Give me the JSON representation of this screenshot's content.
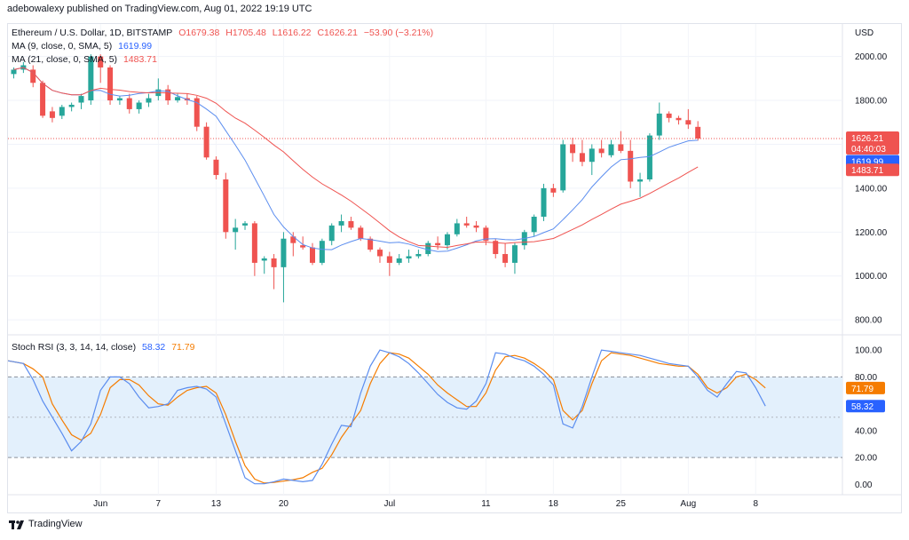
{
  "publisher": "adebowalexy published on TradingView.com, Aug 01, 2022 19:19 UTC",
  "legend": {
    "symbol": "Ethereum / U.S. Dollar, 1D, BITSTAMP",
    "open": "O1679.38",
    "high": "H1705.48",
    "low": "L1616.22",
    "close": "C1626.21",
    "change": "−53.90 (−3.21%)",
    "ma9_label": "MA (9, close, 0, SMA, 5)",
    "ma9_value": "1619.99",
    "ma21_label": "MA (21, close, 0, SMA, 5)",
    "ma21_value": "1483.71",
    "rsi_label": "Stoch RSI (3, 3, 14, 14, close)",
    "rsi_k": "58.32",
    "rsi_d": "71.79"
  },
  "branding": "TradingView",
  "colors": {
    "up": "#26a69a",
    "down": "#ef5350",
    "ma9": "#5b8def",
    "ma21": "#ef5350",
    "stoch_k": "#5b8def",
    "stoch_d": "#f57c00",
    "band_fill": "#e3f0fc",
    "price_line": "#ef5350"
  },
  "chart_data": [
    {
      "type": "candlestick",
      "title": "Ethereum / U.S. Dollar, 1D, BITSTAMP",
      "currency": "USD",
      "ylim": [
        740,
        2140
      ],
      "yticks": [
        800,
        1000,
        1200,
        1400,
        1600,
        1800,
        2000
      ],
      "ytick_labels": [
        "800.00",
        "1000.00",
        "1200.00",
        "1400.00",
        "1600.00",
        "1800.00",
        "2000.00"
      ],
      "xtick_labels": [
        "Jun",
        "7",
        "13",
        "20",
        "Jul",
        "11",
        "18",
        "25",
        "Aug",
        "8"
      ],
      "xtick_day_index": [
        0,
        6,
        12,
        19,
        30,
        40,
        47,
        54,
        61,
        68
      ],
      "first_day_index": -9,
      "day_span": [
        -9.6,
        77
      ],
      "last_price": "1626.21",
      "countdown": "04:40:03",
      "candles": [
        [
          1920,
          1950,
          1900,
          1940
        ],
        [
          1940,
          1975,
          1925,
          1960
        ],
        [
          1940,
          1960,
          1860,
          1880
        ],
        [
          1880,
          1890,
          1720,
          1730
        ],
        [
          1750,
          1770,
          1700,
          1720
        ],
        [
          1730,
          1780,
          1715,
          1770
        ],
        [
          1770,
          1790,
          1750,
          1780
        ],
        [
          1790,
          1830,
          1760,
          1820
        ],
        [
          1800,
          2010,
          1780,
          2000
        ],
        [
          2000,
          2010,
          1880,
          1950
        ],
        [
          1950,
          1960,
          1780,
          1800
        ],
        [
          1800,
          1820,
          1780,
          1810
        ],
        [
          1810,
          1830,
          1740,
          1760
        ],
        [
          1760,
          1800,
          1740,
          1790
        ],
        [
          1790,
          1830,
          1770,
          1810
        ],
        [
          1820,
          1900,
          1800,
          1850
        ],
        [
          1850,
          1870,
          1780,
          1800
        ],
        [
          1800,
          1830,
          1790,
          1815
        ],
        [
          1810,
          1830,
          1780,
          1800
        ],
        [
          1810,
          1820,
          1660,
          1680
        ],
        [
          1680,
          1700,
          1530,
          1540
        ],
        [
          1530,
          1545,
          1440,
          1460
        ],
        [
          1440,
          1470,
          1170,
          1200
        ],
        [
          1200,
          1260,
          1120,
          1220
        ],
        [
          1230,
          1250,
          1210,
          1240
        ],
        [
          1240,
          1250,
          1000,
          1060
        ],
        [
          1070,
          1090,
          1010,
          1080
        ],
        [
          1080,
          1100,
          940,
          1040
        ],
        [
          1040,
          1200,
          880,
          1170
        ],
        [
          1180,
          1200,
          1090,
          1150
        ],
        [
          1140,
          1180,
          1120,
          1130
        ],
        [
          1130,
          1150,
          1050,
          1060
        ],
        [
          1060,
          1170,
          1050,
          1160
        ],
        [
          1160,
          1240,
          1140,
          1230
        ],
        [
          1230,
          1280,
          1200,
          1250
        ],
        [
          1250,
          1270,
          1210,
          1220
        ],
        [
          1220,
          1230,
          1160,
          1170
        ],
        [
          1170,
          1180,
          1110,
          1120
        ],
        [
          1120,
          1130,
          1060,
          1090
        ],
        [
          1090,
          1110,
          1000,
          1060
        ],
        [
          1060,
          1100,
          1050,
          1080
        ],
        [
          1080,
          1120,
          1060,
          1090
        ],
        [
          1090,
          1120,
          1080,
          1100
        ],
        [
          1100,
          1160,
          1090,
          1150
        ],
        [
          1150,
          1180,
          1120,
          1140
        ],
        [
          1140,
          1200,
          1120,
          1190
        ],
        [
          1190,
          1260,
          1180,
          1240
        ],
        [
          1240,
          1270,
          1220,
          1230
        ],
        [
          1230,
          1250,
          1200,
          1220
        ],
        [
          1220,
          1230,
          1140,
          1160
        ],
        [
          1160,
          1170,
          1080,
          1100
        ],
        [
          1100,
          1150,
          1040,
          1060
        ],
        [
          1060,
          1150,
          1010,
          1140
        ],
        [
          1140,
          1210,
          1120,
          1200
        ],
        [
          1200,
          1280,
          1180,
          1270
        ],
        [
          1270,
          1420,
          1250,
          1400
        ],
        [
          1400,
          1420,
          1360,
          1380
        ],
        [
          1390,
          1620,
          1380,
          1600
        ],
        [
          1600,
          1630,
          1520,
          1560
        ],
        [
          1560,
          1620,
          1500,
          1520
        ],
        [
          1520,
          1600,
          1460,
          1580
        ],
        [
          1580,
          1620,
          1540,
          1560
        ],
        [
          1550,
          1620,
          1540,
          1600
        ],
        [
          1600,
          1660,
          1560,
          1570
        ],
        [
          1570,
          1620,
          1400,
          1430
        ],
        [
          1430,
          1470,
          1360,
          1440
        ],
        [
          1440,
          1650,
          1430,
          1640
        ],
        [
          1640,
          1790,
          1620,
          1740
        ],
        [
          1740,
          1750,
          1700,
          1720
        ],
        [
          1720,
          1730,
          1690,
          1710
        ],
        [
          1710,
          1760,
          1670,
          1690
        ],
        [
          1679.38,
          1705.48,
          1616.22,
          1626.21
        ]
      ],
      "series": [
        {
          "name": "MA (9, close, 0, SMA, 5)",
          "last": 1619.99
        },
        {
          "name": "MA (21, close, 0, SMA, 5)",
          "last": 1483.71
        }
      ]
    },
    {
      "type": "line",
      "title": "Stoch RSI (3, 3, 14, 14, close)",
      "ylim": [
        -5,
        110
      ],
      "yticks": [
        0,
        20,
        40,
        60,
        80,
        100
      ],
      "ytick_labels": [
        "0.00",
        "20.00",
        "40.00",
        "60.00",
        "80.00",
        "100.00"
      ],
      "band": [
        20,
        80
      ],
      "midline": 50,
      "series": [
        {
          "name": "K",
          "last": 58.32,
          "points": [
            [
              -9.6,
              92
            ],
            [
              -8,
              90
            ],
            [
              -7,
              78
            ],
            [
              -6,
              62
            ],
            [
              -4,
              38
            ],
            [
              -3,
              25
            ],
            [
              -2,
              32
            ],
            [
              -1,
              45
            ],
            [
              0,
              70
            ],
            [
              1,
              80
            ],
            [
              2,
              80
            ],
            [
              3,
              75
            ],
            [
              4,
              65
            ],
            [
              5,
              57
            ],
            [
              6,
              58
            ],
            [
              7,
              60
            ],
            [
              8,
              70
            ],
            [
              9,
              72
            ],
            [
              10,
              73
            ],
            [
              11,
              71
            ],
            [
              12,
              65
            ],
            [
              13,
              45
            ],
            [
              14,
              25
            ],
            [
              15,
              5
            ],
            [
              16,
              0.5
            ],
            [
              17,
              0.5
            ],
            [
              18,
              2
            ],
            [
              19,
              4
            ],
            [
              20,
              3
            ],
            [
              21,
              2
            ],
            [
              22,
              3
            ],
            [
              23,
              15
            ],
            [
              24,
              30
            ],
            [
              25,
              44
            ],
            [
              26,
              43
            ],
            [
              27,
              68
            ],
            [
              28,
              88
            ],
            [
              29,
              100
            ],
            [
              30,
              98
            ],
            [
              31,
              95
            ],
            [
              32,
              90
            ],
            [
              33,
              83
            ],
            [
              34,
              75
            ],
            [
              35,
              67
            ],
            [
              36,
              61
            ],
            [
              37,
              57
            ],
            [
              38,
              56
            ],
            [
              39,
              62
            ],
            [
              40,
              75
            ],
            [
              41,
              98
            ],
            [
              42,
              97
            ],
            [
              43,
              94
            ],
            [
              44,
              92
            ],
            [
              45,
              88
            ],
            [
              46,
              82
            ],
            [
              47,
              74
            ],
            [
              48,
              45
            ],
            [
              49,
              42
            ],
            [
              50,
              58
            ],
            [
              51,
              80
            ],
            [
              52,
              100
            ],
            [
              53,
              99
            ],
            [
              54,
              98
            ],
            [
              55,
              97
            ],
            [
              56,
              96
            ],
            [
              57,
              94
            ],
            [
              58,
              92
            ],
            [
              59,
              90
            ],
            [
              60,
              89
            ],
            [
              61,
              88
            ],
            [
              62,
              80
            ],
            [
              63,
              70
            ],
            [
              64,
              65
            ],
            [
              65,
              75
            ],
            [
              66,
              84
            ],
            [
              67,
              83
            ],
            [
              68,
              72
            ],
            [
              69,
              58.32
            ]
          ]
        },
        {
          "name": "D",
          "last": 71.79,
          "points": [
            [
              -9.6,
              92
            ],
            [
              -8,
              90
            ],
            [
              -7,
              86
            ],
            [
              -6,
              80
            ],
            [
              -5,
              60
            ],
            [
              -4,
              48
            ],
            [
              -3,
              37
            ],
            [
              -2,
              33
            ],
            [
              -1,
              38
            ],
            [
              0,
              52
            ],
            [
              1,
              72
            ],
            [
              2,
              78
            ],
            [
              3,
              78
            ],
            [
              4,
              74
            ],
            [
              5,
              66
            ],
            [
              6,
              60
            ],
            [
              7,
              59
            ],
            [
              8,
              65
            ],
            [
              9,
              70
            ],
            [
              10,
              72
            ],
            [
              11,
              73
            ],
            [
              12,
              68
            ],
            [
              13,
              52
            ],
            [
              14,
              32
            ],
            [
              15,
              14
            ],
            [
              16,
              4
            ],
            [
              17,
              1
            ],
            [
              18,
              1.5
            ],
            [
              19,
              2.5
            ],
            [
              20,
              3.5
            ],
            [
              21,
              5
            ],
            [
              22,
              9
            ],
            [
              23,
              12
            ],
            [
              24,
              22
            ],
            [
              25,
              35
            ],
            [
              26,
              45
            ],
            [
              27,
              55
            ],
            [
              28,
              75
            ],
            [
              29,
              90
            ],
            [
              30,
              98
            ],
            [
              31,
              97
            ],
            [
              32,
              94
            ],
            [
              33,
              88
            ],
            [
              34,
              82
            ],
            [
              35,
              74
            ],
            [
              36,
              68
            ],
            [
              37,
              63
            ],
            [
              38,
              58
            ],
            [
              39,
              58
            ],
            [
              40,
              68
            ],
            [
              41,
              85
            ],
            [
              42,
              95
            ],
            [
              43,
              96
            ],
            [
              44,
              94
            ],
            [
              45,
              90
            ],
            [
              46,
              85
            ],
            [
              47,
              78
            ],
            [
              48,
              55
            ],
            [
              49,
              48
            ],
            [
              50,
              55
            ],
            [
              51,
              75
            ],
            [
              52,
              92
            ],
            [
              53,
              98
            ],
            [
              54,
              97
            ],
            [
              55,
              96
            ],
            [
              56,
              94
            ],
            [
              57,
              92
            ],
            [
              58,
              90
            ],
            [
              59,
              89
            ],
            [
              60,
              88
            ],
            [
              61,
              88
            ],
            [
              62,
              82
            ],
            [
              63,
              72
            ],
            [
              64,
              68
            ],
            [
              65,
              72
            ],
            [
              66,
              80
            ],
            [
              67,
              82
            ],
            [
              68,
              78
            ],
            [
              69,
              71.79
            ]
          ]
        }
      ]
    }
  ]
}
